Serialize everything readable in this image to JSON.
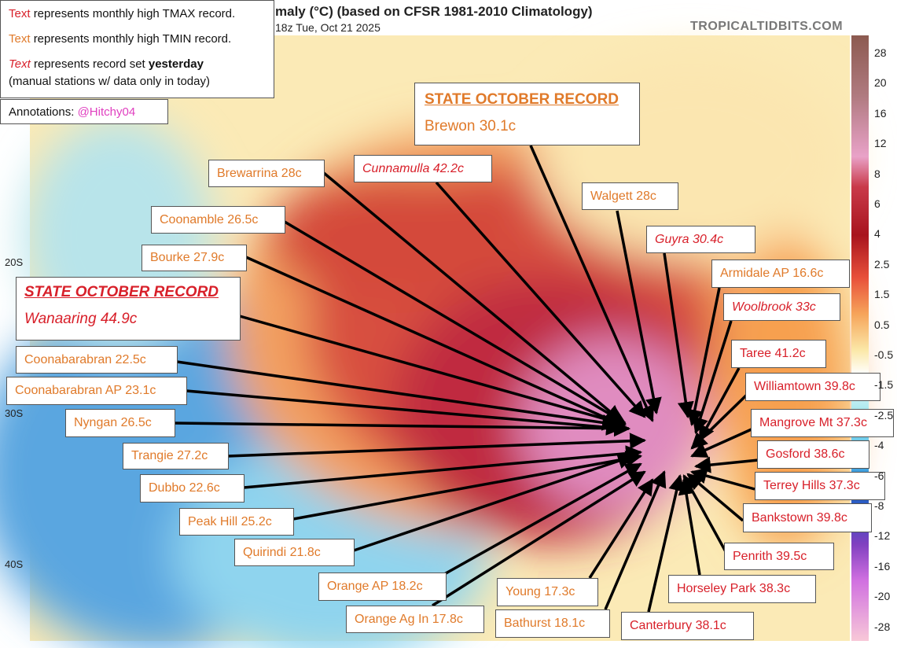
{
  "header": {
    "title": "maly (°C) (based on CFSR 1981-2010 Climatology)",
    "subtitle": "18z Tue, Oct 21 2025",
    "site": "TROPICALTIDBITS.COM"
  },
  "legend": {
    "items": [
      {
        "marker": "Text",
        "text": "represents monthly high TMAX record."
      },
      {
        "marker": "Text",
        "text": "represents monthly high TMIN record."
      },
      {
        "marker": "Text",
        "text": "represents record set",
        "emphasis": "yesterday",
        "note": "(manual stations w/ data only in today)"
      }
    ]
  },
  "annotations": {
    "label": "Annotations:",
    "handle": "@Hitchy04"
  },
  "colorbar": {
    "ticks": [
      28,
      20,
      16,
      12,
      8,
      6,
      4,
      2.5,
      1.5,
      0.5,
      -0.5,
      -1.5,
      -2.5,
      -4,
      -6,
      -8,
      -12,
      -16,
      -20,
      -28
    ]
  },
  "latitudes": [
    "20S",
    "30S",
    "40S"
  ],
  "records": [
    {
      "heading": "STATE OCTOBER RECORD",
      "station": "Wanaaring 44.9c"
    },
    {
      "heading": "STATE OCTOBER RECORD",
      "station": "Brewon 30.1c"
    }
  ],
  "stations": [
    "Brewarrina 28c",
    "Cunnamulla 42.2c",
    "Walgett 28c",
    "Guyra 30.4c",
    "Armidale AP 16.6c",
    "Woolbrook 33c",
    "Taree 41.2c",
    "Williamtown 39.8c",
    "Mangrove Mt 37.3c",
    "Gosford 38.6c",
    "Terrey Hills 37.3c",
    "Bankstown 39.8c",
    "Penrith 39.5c",
    "Horseley Park 38.3c",
    "Canterbury 38.1c",
    "Bathurst 18.1c",
    "Young 17.3c",
    "Orange Ag In 17.8c",
    "Orange AP 18.2c",
    "Quirindi 21.8c",
    "Peak Hill 25.2c",
    "Dubbo 22.6c",
    "Trangie 27.2c",
    "Nyngan 26.5c",
    "Coonabarabran AP 23.1c",
    "Coonabarabran 22.5c",
    "Bourke 27.9c",
    "Coonamble 26.5c"
  ]
}
